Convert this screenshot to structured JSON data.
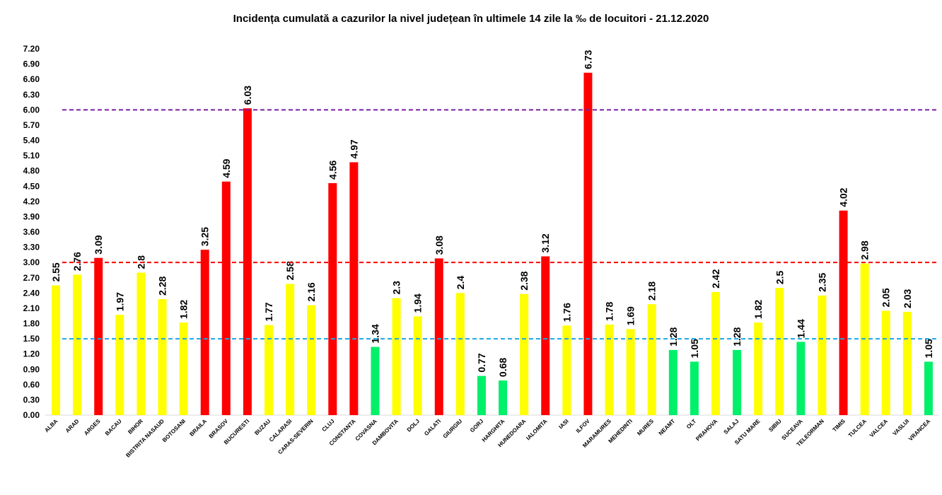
{
  "chart_data": {
    "type": "bar",
    "title": "Incidența cumulată a cazurilor la nivel județean în ultimele 14 zile la ‰ de locuitori - 21.12.2020",
    "xlabel": "",
    "ylabel": "",
    "ylim": [
      0,
      7.2
    ],
    "yticks": [
      "0.00",
      "0.30",
      "0.60",
      "0.90",
      "1.20",
      "1.50",
      "1.80",
      "2.10",
      "2.40",
      "2.70",
      "3.00",
      "3.30",
      "3.60",
      "3.90",
      "4.20",
      "4.50",
      "4.80",
      "5.10",
      "5.40",
      "5.70",
      "6.00",
      "6.30",
      "6.60",
      "6.90",
      "7.20"
    ],
    "categories": [
      "ALBA",
      "ARAD",
      "ARGES",
      "BACAU",
      "BIHOR",
      "BISTRITA NASAUD",
      "BOTOSANI",
      "BRAILA",
      "BRASOV",
      "BUCURESTI",
      "BUZAU",
      "CALARASI",
      "CARAS-SEVERIN",
      "CLUJ",
      "CONSTANTA",
      "COVASNA",
      "DAMBOVITA",
      "DOLJ",
      "GALATI",
      "GIURGIU",
      "GORJ",
      "HARGHITA",
      "HUNEDOARA",
      "IALOMITA",
      "IASI",
      "ILFOV",
      "MARAMURES",
      "MEHEDINTI",
      "MURES",
      "NEAMT",
      "OLT",
      "PRAHOVA",
      "SALAJ",
      "SATU MARE",
      "SIBIU",
      "SUCEAVA",
      "TELEORMAN",
      "TIMIS",
      "TULCEA",
      "VALCEA",
      "VASLUI",
      "VRANCEA"
    ],
    "values": [
      2.55,
      2.76,
      3.09,
      1.97,
      2.8,
      2.28,
      1.82,
      3.25,
      4.59,
      6.03,
      1.77,
      2.58,
      2.16,
      4.56,
      4.97,
      1.34,
      2.3,
      1.94,
      3.08,
      2.4,
      0.77,
      0.68,
      2.38,
      3.12,
      1.76,
      6.73,
      1.78,
      1.69,
      2.18,
      1.28,
      1.05,
      2.42,
      1.28,
      1.82,
      2.5,
      1.44,
      2.35,
      4.02,
      2.98,
      2.05,
      2.03,
      1.05
    ],
    "value_labels": [
      "2.55",
      "2.76",
      "3.09",
      "1.97",
      "2.8",
      "2.28",
      "1.82",
      "3.25",
      "4.59",
      "6.03",
      "1.77",
      "2.58",
      "2.16",
      "4.56",
      "4.97",
      "1.34",
      "2.3",
      "1.94",
      "3.08",
      "2.4",
      "0.77",
      "0.68",
      "2.38",
      "3.12",
      "1.76",
      "6.73",
      "1.78",
      "1.69",
      "2.18",
      "1.28",
      "1.05",
      "2.42",
      "1.28",
      "1.82",
      "2.5",
      "1.44",
      "2.35",
      "4.02",
      "2.98",
      "2.05",
      "2.03",
      "1.05"
    ],
    "thresholds": [
      {
        "value": 1.5,
        "color": "#1aa7e8",
        "style": "dashed"
      },
      {
        "value": 3.0,
        "color": "#ff0000",
        "style": "dashed"
      },
      {
        "value": 6.0,
        "color": "#7a1fa2",
        "style": "dashed"
      }
    ],
    "bar_colors": {
      "low": "#00f06a",
      "mid": "#ffff00",
      "high": "#ff0000"
    },
    "grid": false,
    "legend": "none"
  }
}
